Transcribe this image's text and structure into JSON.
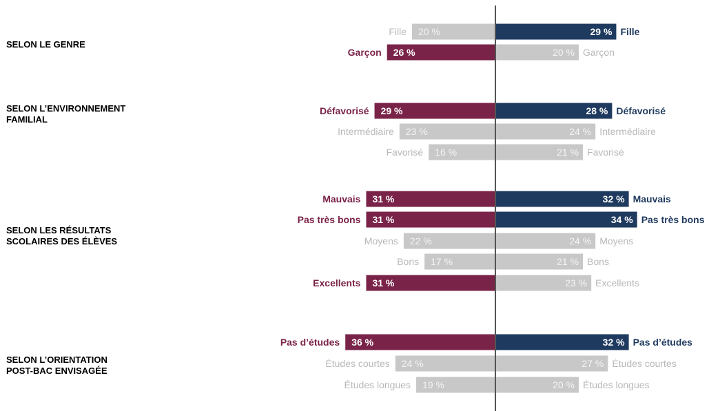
{
  "colors": {
    "left_highlight": "#7a2348",
    "right_highlight": "#1f3a5f",
    "muted_bar": "#c8c8c8",
    "muted_text": "#b8b8b8",
    "axis": "#555555",
    "value_text": "#ffffff"
  },
  "chart_data": {
    "type": "bar",
    "orientation": "horizontal-diverging",
    "value_suffix": " %",
    "title": "",
    "groups": [
      {
        "label": "SELON LE GENRE",
        "rows": [
          {
            "category": "Fille",
            "left": 20,
            "left_highlight": false,
            "right": 29,
            "right_highlight": true
          },
          {
            "category": "Garçon",
            "left": 26,
            "left_highlight": true,
            "right": 20,
            "right_highlight": false
          }
        ]
      },
      {
        "label": "SELON L’ENVIRONNEMENT\nFAMILIAL",
        "rows": [
          {
            "category": "Défavorisé",
            "left": 29,
            "left_highlight": true,
            "right": 28,
            "right_highlight": true
          },
          {
            "category": "Intermédiaire",
            "left": 23,
            "left_highlight": false,
            "right": 24,
            "right_highlight": false
          },
          {
            "category": "Favorisé",
            "left": 16,
            "left_highlight": false,
            "right": 21,
            "right_highlight": false
          }
        ]
      },
      {
        "label": "SELON LES RÉSULTATS\nSCOLAIRES DES  ÉLÈVES",
        "rows": [
          {
            "category": "Mauvais",
            "left": 31,
            "left_highlight": true,
            "right": 32,
            "right_highlight": true
          },
          {
            "category": "Pas très bons",
            "left": 31,
            "left_highlight": true,
            "right": 34,
            "right_highlight": true
          },
          {
            "category": "Moyens",
            "left": 22,
            "left_highlight": false,
            "right": 24,
            "right_highlight": false
          },
          {
            "category": "Bons",
            "left": 17,
            "left_highlight": false,
            "right": 21,
            "right_highlight": false
          },
          {
            "category": "Excellents",
            "left": 31,
            "left_highlight": true,
            "right": 23,
            "right_highlight": false
          }
        ]
      },
      {
        "label": "SELON L’ORIENTATION\nPOST-BAC ENVISAGÉE",
        "rows": [
          {
            "category": "Pas d’études",
            "left": 36,
            "left_highlight": true,
            "right": 32,
            "right_highlight": true
          },
          {
            "category": "Études courtes",
            "left": 24,
            "left_highlight": false,
            "right": 27,
            "right_highlight": false
          },
          {
            "category": "Études longues",
            "left": 19,
            "left_highlight": false,
            "right": 20,
            "right_highlight": false
          }
        ]
      }
    ]
  }
}
